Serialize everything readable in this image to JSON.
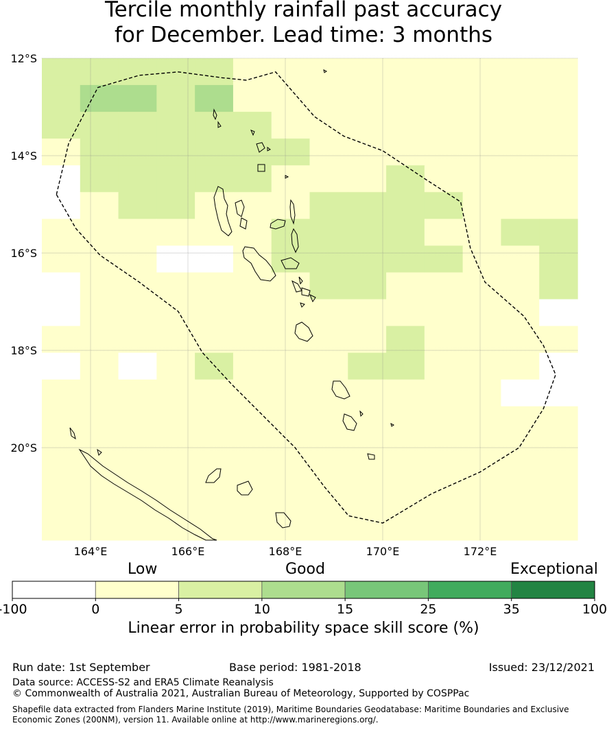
{
  "title": {
    "line1": "Tercile monthly rainfall past accuracy",
    "line2": "for December. Lead time: 3 months"
  },
  "map": {
    "lat_labels": [
      "12°S",
      "14°S",
      "16°S",
      "18°S",
      "20°S"
    ],
    "lon_labels": [
      "164°E",
      "166°E",
      "168°E",
      "170°E",
      "172°E"
    ],
    "lon_range": [
      163,
      174
    ],
    "lat_range": [
      -21.9,
      -12
    ],
    "grid": true,
    "boundary": "Vanuatu EEZ (dashed)"
  },
  "chart_data": {
    "type": "heatmap",
    "cell_size_deg": 0.833,
    "legend_bins": [
      {
        "range": [
          -100,
          0
        ],
        "color": "#ffffff"
      },
      {
        "range": [
          0,
          5
        ],
        "color": "#ffffcc"
      },
      {
        "range": [
          5,
          10
        ],
        "color": "#d9f0a3"
      },
      {
        "range": [
          10,
          15
        ],
        "color": "#addd8e"
      },
      {
        "range": [
          15,
          25
        ],
        "color": "#78c679"
      },
      {
        "range": [
          25,
          35
        ],
        "color": "#41ab5d"
      },
      {
        "range": [
          35,
          100
        ],
        "color": "#238443"
      }
    ],
    "grid_rows_north_to_south": [
      "LLLLLYYYYYYYYY",
      "LMMLMYYYYYYYYY",
      "LLLLLLYYYYYYYY",
      "YLLLLLLYYYYYYY",
      "WLLLLLYYYLYYYY",
      "WYLLYYYLLLLYYY",
      "YYYYYYLLLLYYLL",
      "YYYWWYLLLLLYYL",
      "WYYYYYYLLYYYYL",
      "WYYYYYYYYYYYYW",
      "YYYYYYYYYLYYYY",
      "WYWYLYYYLLYYYW",
      "YYYYYYYYYYYYWW",
      "YYYYYYYYYYYYYY",
      "YYYYYYYYYYYYYY",
      "YYYYYYYYYYYYYY",
      "YYYYYYYYYYYYYY",
      "YYYYYYYYYYYYYY"
    ],
    "cells_legend": {
      "W": "-100 to 0",
      "Y": "0 to 5",
      "L": "5 to 10",
      "M": "10 to 15"
    }
  },
  "colorbar": {
    "category_words": [
      "Low",
      "Good",
      "Exceptional"
    ],
    "tick_labels": [
      "-100",
      "0",
      "5",
      "10",
      "15",
      "25",
      "35",
      "100"
    ],
    "title": "Linear error in probability space skill score (%)"
  },
  "footer": {
    "run_date": "Run date: 1st September",
    "base_period": "Base period: 1981-2018",
    "issued": "Issued: 23/12/2021",
    "data_source": "Data source: ACCESS-S2 and ERA5 Climate Reanalysis",
    "copyright": "© Commonwealth of Australia 2021, Australian Bureau of Meteorology, Supported by COSPPac",
    "shapefile_line1": "Shapefile data extracted from Flanders Marine Institute (2019), Maritime Boundaries Geodatabase: Maritime Boundaries and Exclusive",
    "shapefile_line2": "Economic Zones (200NM), version 11. Available online at http://www.marineregions.org/."
  }
}
